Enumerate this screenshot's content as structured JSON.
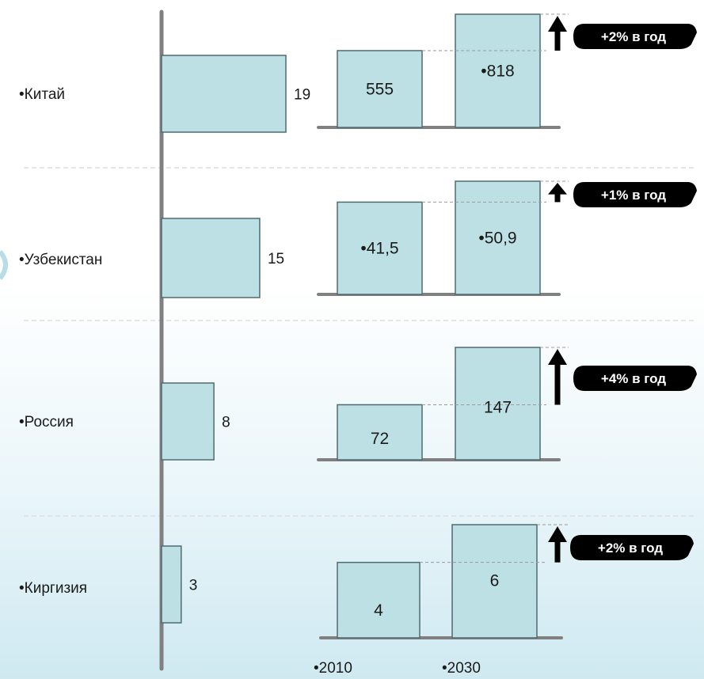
{
  "chart_data": {
    "type": "bar",
    "rows": [
      {
        "country": "Китай",
        "share": 19,
        "share_label": "19",
        "values": [
          555,
          818
        ],
        "value_labels": [
          "555",
          "818"
        ],
        "value_bullets": [
          false,
          true
        ],
        "growth": "+2% в год"
      },
      {
        "country": "Узбекистан",
        "share": 15,
        "share_label": "15",
        "values": [
          41.5,
          50.9
        ],
        "value_labels": [
          "41,5",
          "50,9"
        ],
        "value_bullets": [
          true,
          true
        ],
        "growth": "+1% в год"
      },
      {
        "country": "Россия",
        "share": 8,
        "share_label": "8",
        "values": [
          72,
          147
        ],
        "value_labels": [
          "72",
          "147"
        ],
        "value_bullets": [
          false,
          false
        ],
        "growth": "+4% в год"
      },
      {
        "country": "Киргизия",
        "share": 3,
        "share_label": "3",
        "values": [
          4,
          6
        ],
        "value_labels": [
          "4",
          "6"
        ],
        "value_bullets": [
          false,
          false
        ],
        "growth": "+2% в год"
      }
    ],
    "year_labels": [
      "2010",
      "2030"
    ],
    "bullet": "•"
  },
  "colors": {
    "bar_fill": "#bde0e4",
    "bar_stroke": "#4f6b70",
    "axis": "#808080",
    "arrow": "#000000",
    "badge_fill": "#000000",
    "badge_text": "#ffffff",
    "divider": "#dddddd"
  }
}
